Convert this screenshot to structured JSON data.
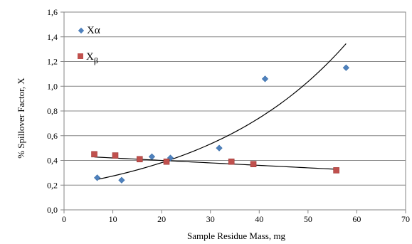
{
  "chart_data": {
    "type": "scatter",
    "xlabel": "Sample Residue Mass, mg",
    "ylabel": "%  Spillover Factor, X",
    "xlim": [
      0,
      70
    ],
    "ylim": [
      0,
      1.6
    ],
    "x_ticks": [
      "0",
      "10",
      "20",
      "30",
      "40",
      "50",
      "60",
      "70"
    ],
    "y_ticks": [
      "0,0",
      "0,2",
      "0,4",
      "0,6",
      "0,8",
      "1,0",
      "1,2",
      "1,4",
      "1,6"
    ],
    "grid": "horizontal",
    "legend_position": "top-left",
    "series": [
      {
        "name": "Xα",
        "legend_main": "X",
        "legend_sub": "α",
        "marker": "diamond",
        "color": "#4f81bd",
        "points": [
          [
            6.8,
            0.26
          ],
          [
            11.8,
            0.24
          ],
          [
            18.0,
            0.43
          ],
          [
            21.8,
            0.42
          ],
          [
            31.8,
            0.5
          ],
          [
            41.2,
            1.06
          ],
          [
            57.8,
            1.15
          ]
        ],
        "trendline": {
          "type": "exponential",
          "a": 0.1962,
          "b": 0.0333,
          "x_range": [
            6.8,
            57.8
          ]
        }
      },
      {
        "name": "Xβ",
        "legend_main": "X",
        "legend_sub": "β",
        "marker": "square",
        "color": "#c0504d",
        "points": [
          [
            6.2,
            0.45
          ],
          [
            10.5,
            0.44
          ],
          [
            15.5,
            0.41
          ],
          [
            21.0,
            0.39
          ],
          [
            34.3,
            0.39
          ],
          [
            38.8,
            0.37
          ],
          [
            55.8,
            0.32
          ]
        ],
        "trendline": {
          "type": "linear",
          "slope": -0.002,
          "intercept": 0.44,
          "x_range": [
            6.2,
            55.8
          ]
        }
      }
    ]
  }
}
